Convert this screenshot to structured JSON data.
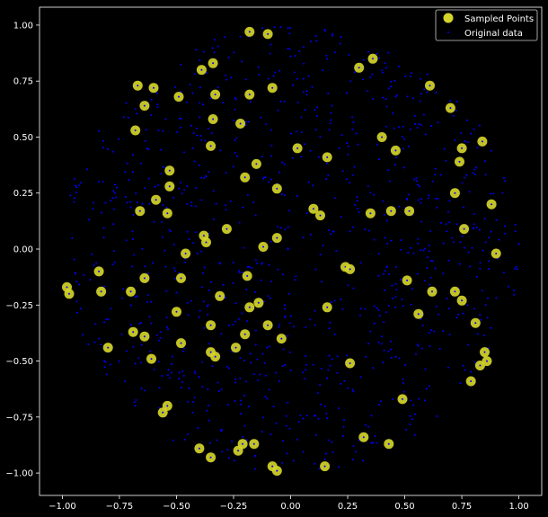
{
  "chart_data": {
    "type": "scatter",
    "title": "",
    "xlabel": "",
    "ylabel": "",
    "xlim": [
      -1.1,
      1.1
    ],
    "ylim": [
      -1.1,
      1.08
    ],
    "x_ticks": [
      -1.0,
      -0.75,
      -0.5,
      -0.25,
      0.0,
      0.25,
      0.5,
      0.75,
      1.0
    ],
    "x_tick_labels": [
      "−1.00",
      "−0.75",
      "−0.50",
      "−0.25",
      "0.00",
      "0.25",
      "0.50",
      "0.75",
      "1.00"
    ],
    "y_ticks": [
      1.0,
      0.75,
      0.5,
      0.25,
      0.0,
      -0.25,
      -0.5,
      -0.75,
      -1.0
    ],
    "y_tick_labels": [
      "1.00",
      "0.75",
      "0.50",
      "0.25",
      "0.00",
      "−0.25",
      "−0.50",
      "−0.75",
      "−1.00"
    ],
    "grid": false,
    "legend_position": "top-right",
    "colors": {
      "background": "#000000",
      "sampled": "#d4d42a",
      "original": "#0000ff",
      "axes": "#ffffff"
    },
    "series": [
      {
        "name": "Sampled Points",
        "marker": "large-circle",
        "points": [
          [
            -0.18,
            0.97
          ],
          [
            -0.1,
            0.96
          ],
          [
            -0.39,
            0.8
          ],
          [
            -0.34,
            0.83
          ],
          [
            0.3,
            0.81
          ],
          [
            0.36,
            0.85
          ],
          [
            0.61,
            0.73
          ],
          [
            -0.67,
            0.73
          ],
          [
            -0.6,
            0.72
          ],
          [
            -0.49,
            0.68
          ],
          [
            -0.33,
            0.69
          ],
          [
            -0.18,
            0.69
          ],
          [
            -0.08,
            0.72
          ],
          [
            0.7,
            0.63
          ],
          [
            -0.64,
            0.64
          ],
          [
            -0.34,
            0.58
          ],
          [
            -0.22,
            0.56
          ],
          [
            -0.68,
            0.53
          ],
          [
            0.4,
            0.5
          ],
          [
            0.46,
            0.44
          ],
          [
            0.75,
            0.45
          ],
          [
            0.84,
            0.48
          ],
          [
            -0.35,
            0.46
          ],
          [
            0.03,
            0.45
          ],
          [
            0.16,
            0.41
          ],
          [
            0.74,
            0.39
          ],
          [
            -0.15,
            0.38
          ],
          [
            -0.53,
            0.35
          ],
          [
            -0.2,
            0.32
          ],
          [
            -0.53,
            0.28
          ],
          [
            -0.06,
            0.27
          ],
          [
            0.72,
            0.25
          ],
          [
            -0.59,
            0.22
          ],
          [
            0.88,
            0.2
          ],
          [
            -0.66,
            0.17
          ],
          [
            -0.54,
            0.16
          ],
          [
            0.1,
            0.18
          ],
          [
            0.13,
            0.15
          ],
          [
            0.35,
            0.16
          ],
          [
            0.44,
            0.17
          ],
          [
            0.52,
            0.17
          ],
          [
            -0.28,
            0.09
          ],
          [
            0.76,
            0.09
          ],
          [
            -0.38,
            0.06
          ],
          [
            -0.37,
            0.03
          ],
          [
            -0.06,
            0.05
          ],
          [
            -0.12,
            0.01
          ],
          [
            -0.46,
            -0.02
          ],
          [
            0.9,
            -0.02
          ],
          [
            0.24,
            -0.08
          ],
          [
            0.26,
            -0.09
          ],
          [
            -0.84,
            -0.1
          ],
          [
            -0.48,
            -0.13
          ],
          [
            -0.64,
            -0.13
          ],
          [
            -0.19,
            -0.12
          ],
          [
            0.51,
            -0.14
          ],
          [
            -0.98,
            -0.17
          ],
          [
            -0.97,
            -0.2
          ],
          [
            -0.83,
            -0.19
          ],
          [
            -0.7,
            -0.19
          ],
          [
            -0.31,
            -0.21
          ],
          [
            0.62,
            -0.19
          ],
          [
            0.72,
            -0.19
          ],
          [
            -0.14,
            -0.24
          ],
          [
            -0.18,
            -0.26
          ],
          [
            0.16,
            -0.26
          ],
          [
            0.75,
            -0.23
          ],
          [
            -0.5,
            -0.28
          ],
          [
            0.56,
            -0.29
          ],
          [
            -0.35,
            -0.34
          ],
          [
            -0.1,
            -0.34
          ],
          [
            0.81,
            -0.33
          ],
          [
            -0.69,
            -0.37
          ],
          [
            -0.64,
            -0.39
          ],
          [
            -0.2,
            -0.38
          ],
          [
            -0.04,
            -0.4
          ],
          [
            -0.48,
            -0.42
          ],
          [
            -0.8,
            -0.44
          ],
          [
            -0.24,
            -0.44
          ],
          [
            -0.35,
            -0.46
          ],
          [
            -0.33,
            -0.48
          ],
          [
            -0.61,
            -0.49
          ],
          [
            0.85,
            -0.46
          ],
          [
            0.86,
            -0.5
          ],
          [
            0.26,
            -0.51
          ],
          [
            0.83,
            -0.52
          ],
          [
            0.79,
            -0.59
          ],
          [
            0.49,
            -0.67
          ],
          [
            -0.54,
            -0.7
          ],
          [
            -0.56,
            -0.73
          ],
          [
            0.32,
            -0.84
          ],
          [
            0.43,
            -0.87
          ],
          [
            -0.4,
            -0.89
          ],
          [
            -0.35,
            -0.93
          ],
          [
            -0.21,
            -0.87
          ],
          [
            -0.23,
            -0.9
          ],
          [
            -0.16,
            -0.87
          ],
          [
            -0.08,
            -0.97
          ],
          [
            -0.06,
            -0.99
          ],
          [
            0.15,
            -0.97
          ]
        ]
      },
      {
        "name": "Original data",
        "marker": "small-dot",
        "point_count": 1000,
        "distribution": "roughly uniform within a circle of radius 1 centred at (0, 0)"
      }
    ]
  }
}
